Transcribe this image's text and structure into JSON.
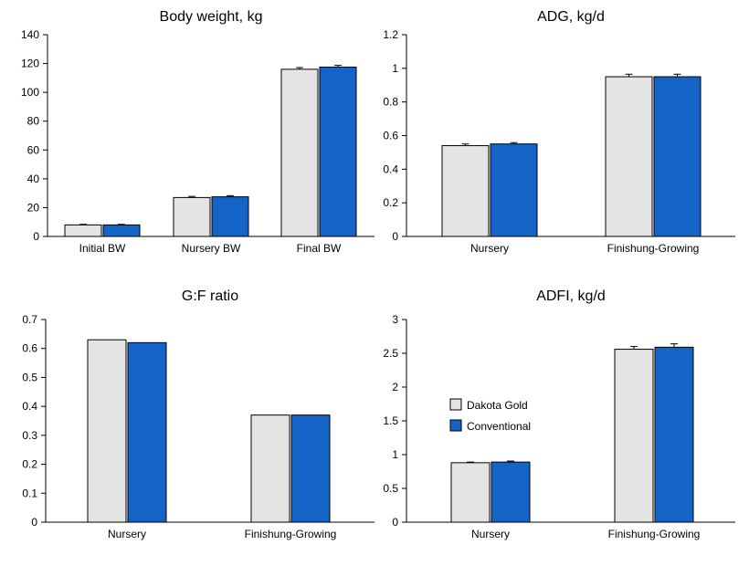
{
  "colors": {
    "dakota_gold": "#e4e4e4",
    "conventional": "#1464c8",
    "bar_stroke": "#000000",
    "axis": "#000000"
  },
  "chart_data": [
    {
      "type": "bar",
      "title": "Body weight, kg",
      "categories": [
        "Initial BW",
        "Nursery BW",
        "Final BW"
      ],
      "series": [
        {
          "name": "Dakota Gold",
          "values": [
            8,
            27,
            116
          ],
          "errors": [
            0.4,
            0.8,
            1.2
          ]
        },
        {
          "name": "Conventional",
          "values": [
            8,
            27.5,
            117.5
          ],
          "errors": [
            0.4,
            0.8,
            1.2
          ]
        }
      ],
      "ylim": [
        0,
        140
      ],
      "yticks": [
        0,
        20,
        40,
        60,
        80,
        100,
        120,
        140
      ],
      "grid": false,
      "legend": "none"
    },
    {
      "type": "bar",
      "title": "ADG, kg/d",
      "categories": [
        "Nursery",
        "Finishung-Growing"
      ],
      "series": [
        {
          "name": "Dakota Gold",
          "values": [
            0.54,
            0.95
          ],
          "errors": [
            0.01,
            0.015
          ]
        },
        {
          "name": "Conventional",
          "values": [
            0.55,
            0.95
          ],
          "errors": [
            0.008,
            0.015
          ]
        }
      ],
      "ylim": [
        0,
        1.2
      ],
      "yticks": [
        0,
        0.2,
        0.4,
        0.6,
        0.8,
        1,
        1.2
      ],
      "grid": false,
      "legend": "none"
    },
    {
      "type": "bar",
      "title": "G:F ratio",
      "categories": [
        "Nursery",
        "Finishung-Growing"
      ],
      "series": [
        {
          "name": "Dakota Gold",
          "values": [
            0.63,
            0.37
          ],
          "errors": [
            0,
            0
          ]
        },
        {
          "name": "Conventional",
          "values": [
            0.62,
            0.37
          ],
          "errors": [
            0,
            0
          ]
        }
      ],
      "ylim": [
        0,
        0.7
      ],
      "yticks": [
        0,
        0.1,
        0.2,
        0.3,
        0.4,
        0.5,
        0.6,
        0.7
      ],
      "grid": false,
      "legend": "none"
    },
    {
      "type": "bar",
      "title": "ADFI, kg/d",
      "categories": [
        "Nursery",
        "Finishung-Growing"
      ],
      "series": [
        {
          "name": "Dakota Gold",
          "values": [
            0.88,
            2.56
          ],
          "errors": [
            0.01,
            0.04
          ]
        },
        {
          "name": "Conventional",
          "values": [
            0.89,
            2.59
          ],
          "errors": [
            0.015,
            0.05
          ]
        }
      ],
      "ylim": [
        0,
        3
      ],
      "yticks": [
        0,
        0.5,
        1,
        1.5,
        2,
        2.5,
        3
      ],
      "grid": false,
      "legend": "left, inside plot"
    }
  ]
}
